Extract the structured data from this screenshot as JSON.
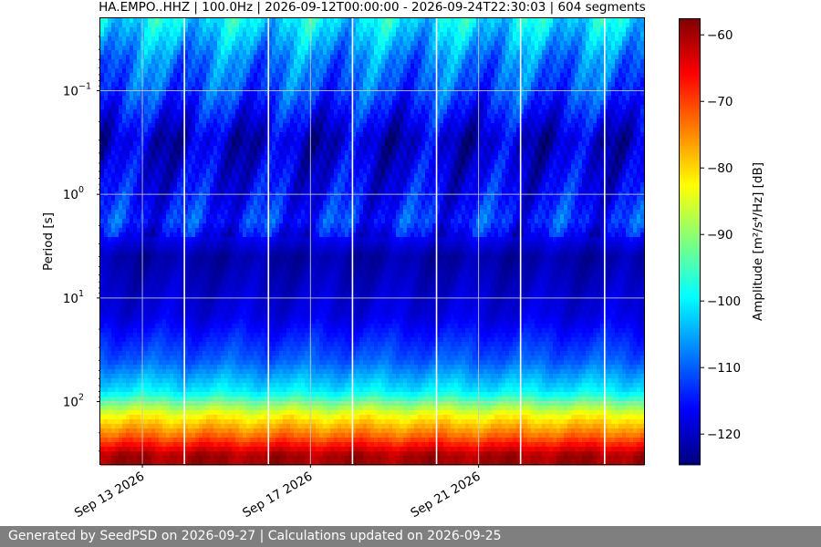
{
  "chart_data": {
    "type": "heatmap",
    "title": "HA.EMPO..HHZ | 100.0Hz | 2026-09-12T00:00:00 - 2026-09-24T22:30:03 | 604 segments",
    "ylabel": "Period [s]",
    "colorbar_label": "Amplitude [m²/s⁴/Hz] [dB]",
    "x_start": "2026-09-12T00:00:00",
    "x_end": "2026-09-24T22:30:03",
    "x_ticks": [
      {
        "date": "2026-09-13",
        "label": "Sep 13 2026"
      },
      {
        "date": "2026-09-17",
        "label": "Sep 17 2026"
      },
      {
        "date": "2026-09-21",
        "label": "Sep 21 2026"
      }
    ],
    "y_scale": "log",
    "y_inverted": true,
    "ylim": [
      0.02,
      400
    ],
    "y_ticks": [
      {
        "value": 0.1,
        "base": "10",
        "exp": "−1"
      },
      {
        "value": 1,
        "base": "10",
        "exp": "0"
      },
      {
        "value": 10,
        "base": "10",
        "exp": "1"
      },
      {
        "value": 100,
        "base": "10",
        "exp": "2"
      }
    ],
    "colorbar_range": [
      -124.5,
      -57.5
    ],
    "colorbar_ticks": [
      "-60",
      "-70",
      "-80",
      "-90",
      "-100",
      "-110",
      "-120"
    ],
    "colormap": "jet",
    "grid": true,
    "data_gap_dates": [
      "2026-09-14",
      "2026-09-16",
      "2026-09-18",
      "2026-09-20",
      "2026-09-22",
      "2026-09-24"
    ],
    "amplitude_profile": [
      {
        "period": 0.02,
        "db": -100
      },
      {
        "period": 0.05,
        "db": -108
      },
      {
        "period": 0.1,
        "db": -111
      },
      {
        "period": 0.3,
        "db": -120
      },
      {
        "period": 1,
        "db": -116
      },
      {
        "period": 1.8,
        "db": -113
      },
      {
        "period": 4,
        "db": -122
      },
      {
        "period": 15,
        "db": -118
      },
      {
        "period": 40,
        "db": -110
      },
      {
        "period": 80,
        "db": -100
      },
      {
        "period": 130,
        "db": -84
      },
      {
        "period": 220,
        "db": -72
      },
      {
        "period": 330,
        "db": -60
      }
    ]
  },
  "footer": {
    "text": "Generated by SeedPSD on 2026-09-27 | Calculations updated on 2026-09-25"
  }
}
